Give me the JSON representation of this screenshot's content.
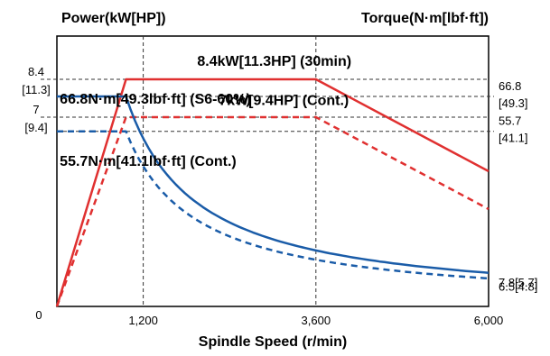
{
  "chart_data": {
    "type": "line",
    "y_left_title": "Power(kW[HP])",
    "y_right_title": "Torque(N·m[lbf·ft])",
    "xlabel": "Spindle Speed (r/min)",
    "xlim": [
      0,
      6000
    ],
    "x_ticks": [
      {
        "value": 1200,
        "label": "1,200"
      },
      {
        "value": 3600,
        "label": "3,600"
      },
      {
        "value": 6000,
        "label": "6,000"
      }
    ],
    "origin_label": "0",
    "power_axis": {
      "ylim": [
        0,
        10
      ],
      "ticks": [
        {
          "value": 8.4,
          "label": "8.4",
          "sub": "[11.3]"
        },
        {
          "value": 7,
          "label": "7",
          "sub": "[9.4]"
        }
      ]
    },
    "torque_axis": {
      "ylim": [
        0,
        86
      ],
      "ticks": [
        {
          "value": 66.8,
          "label": "66.8",
          "sub": "[49.3]"
        },
        {
          "value": 55.7,
          "label": "55.7",
          "sub": "[41.1]"
        },
        {
          "value": 7.8,
          "label": "7.8[5.7]",
          "sub": ""
        },
        {
          "value": 6.5,
          "label": "6.5[4.8]",
          "sub": ""
        }
      ]
    },
    "series": [
      {
        "name": "8.4kW[11.3HP] (30min)",
        "axis": "power",
        "color": "#e03030",
        "dash": false,
        "x": [
          0,
          960,
          3600,
          6000
        ],
        "y": [
          0,
          8.4,
          8.4,
          5.0
        ]
      },
      {
        "name": "7kW[9.4HP] (Cont.)",
        "axis": "power",
        "color": "#e03030",
        "dash": true,
        "x": [
          0,
          960,
          3600,
          6000
        ],
        "y": [
          0,
          7.0,
          7.0,
          3.6
        ]
      },
      {
        "name": "66.8N·m[49.3lbf·ft] (S6-60%)",
        "axis": "torque",
        "color": "#1a5ca8",
        "dash": false,
        "x": [
          0,
          960,
          6000
        ],
        "y": [
          66.8,
          66.8,
          7.8
        ],
        "curve_from": 960,
        "curve_const": 64128
      },
      {
        "name": "55.7N·m[41.1lbf·ft] (Cont.)",
        "axis": "torque",
        "color": "#1a5ca8",
        "dash": true,
        "x": [
          0,
          960,
          6000
        ],
        "y": [
          55.7,
          55.7,
          6.5
        ],
        "curve_from": 960,
        "curve_const": 53472
      }
    ],
    "annotations": [
      {
        "text": "8.4kW[11.3HP] (30min)",
        "x": 1950,
        "y": 8.9,
        "axis": "power"
      },
      {
        "text": "66.8N·m[49.3lbf·ft] (S6-60%)",
        "x": 40,
        "y": 7.5,
        "axis": "power"
      },
      {
        "text": "7kW[9.4HP] (Cont.)",
        "x": 2250,
        "y": 7.45,
        "axis": "power"
      },
      {
        "text": "55.7N·m[41.1lbf·ft] (Cont.)",
        "x": 40,
        "y": 5.2,
        "axis": "power"
      }
    ]
  }
}
